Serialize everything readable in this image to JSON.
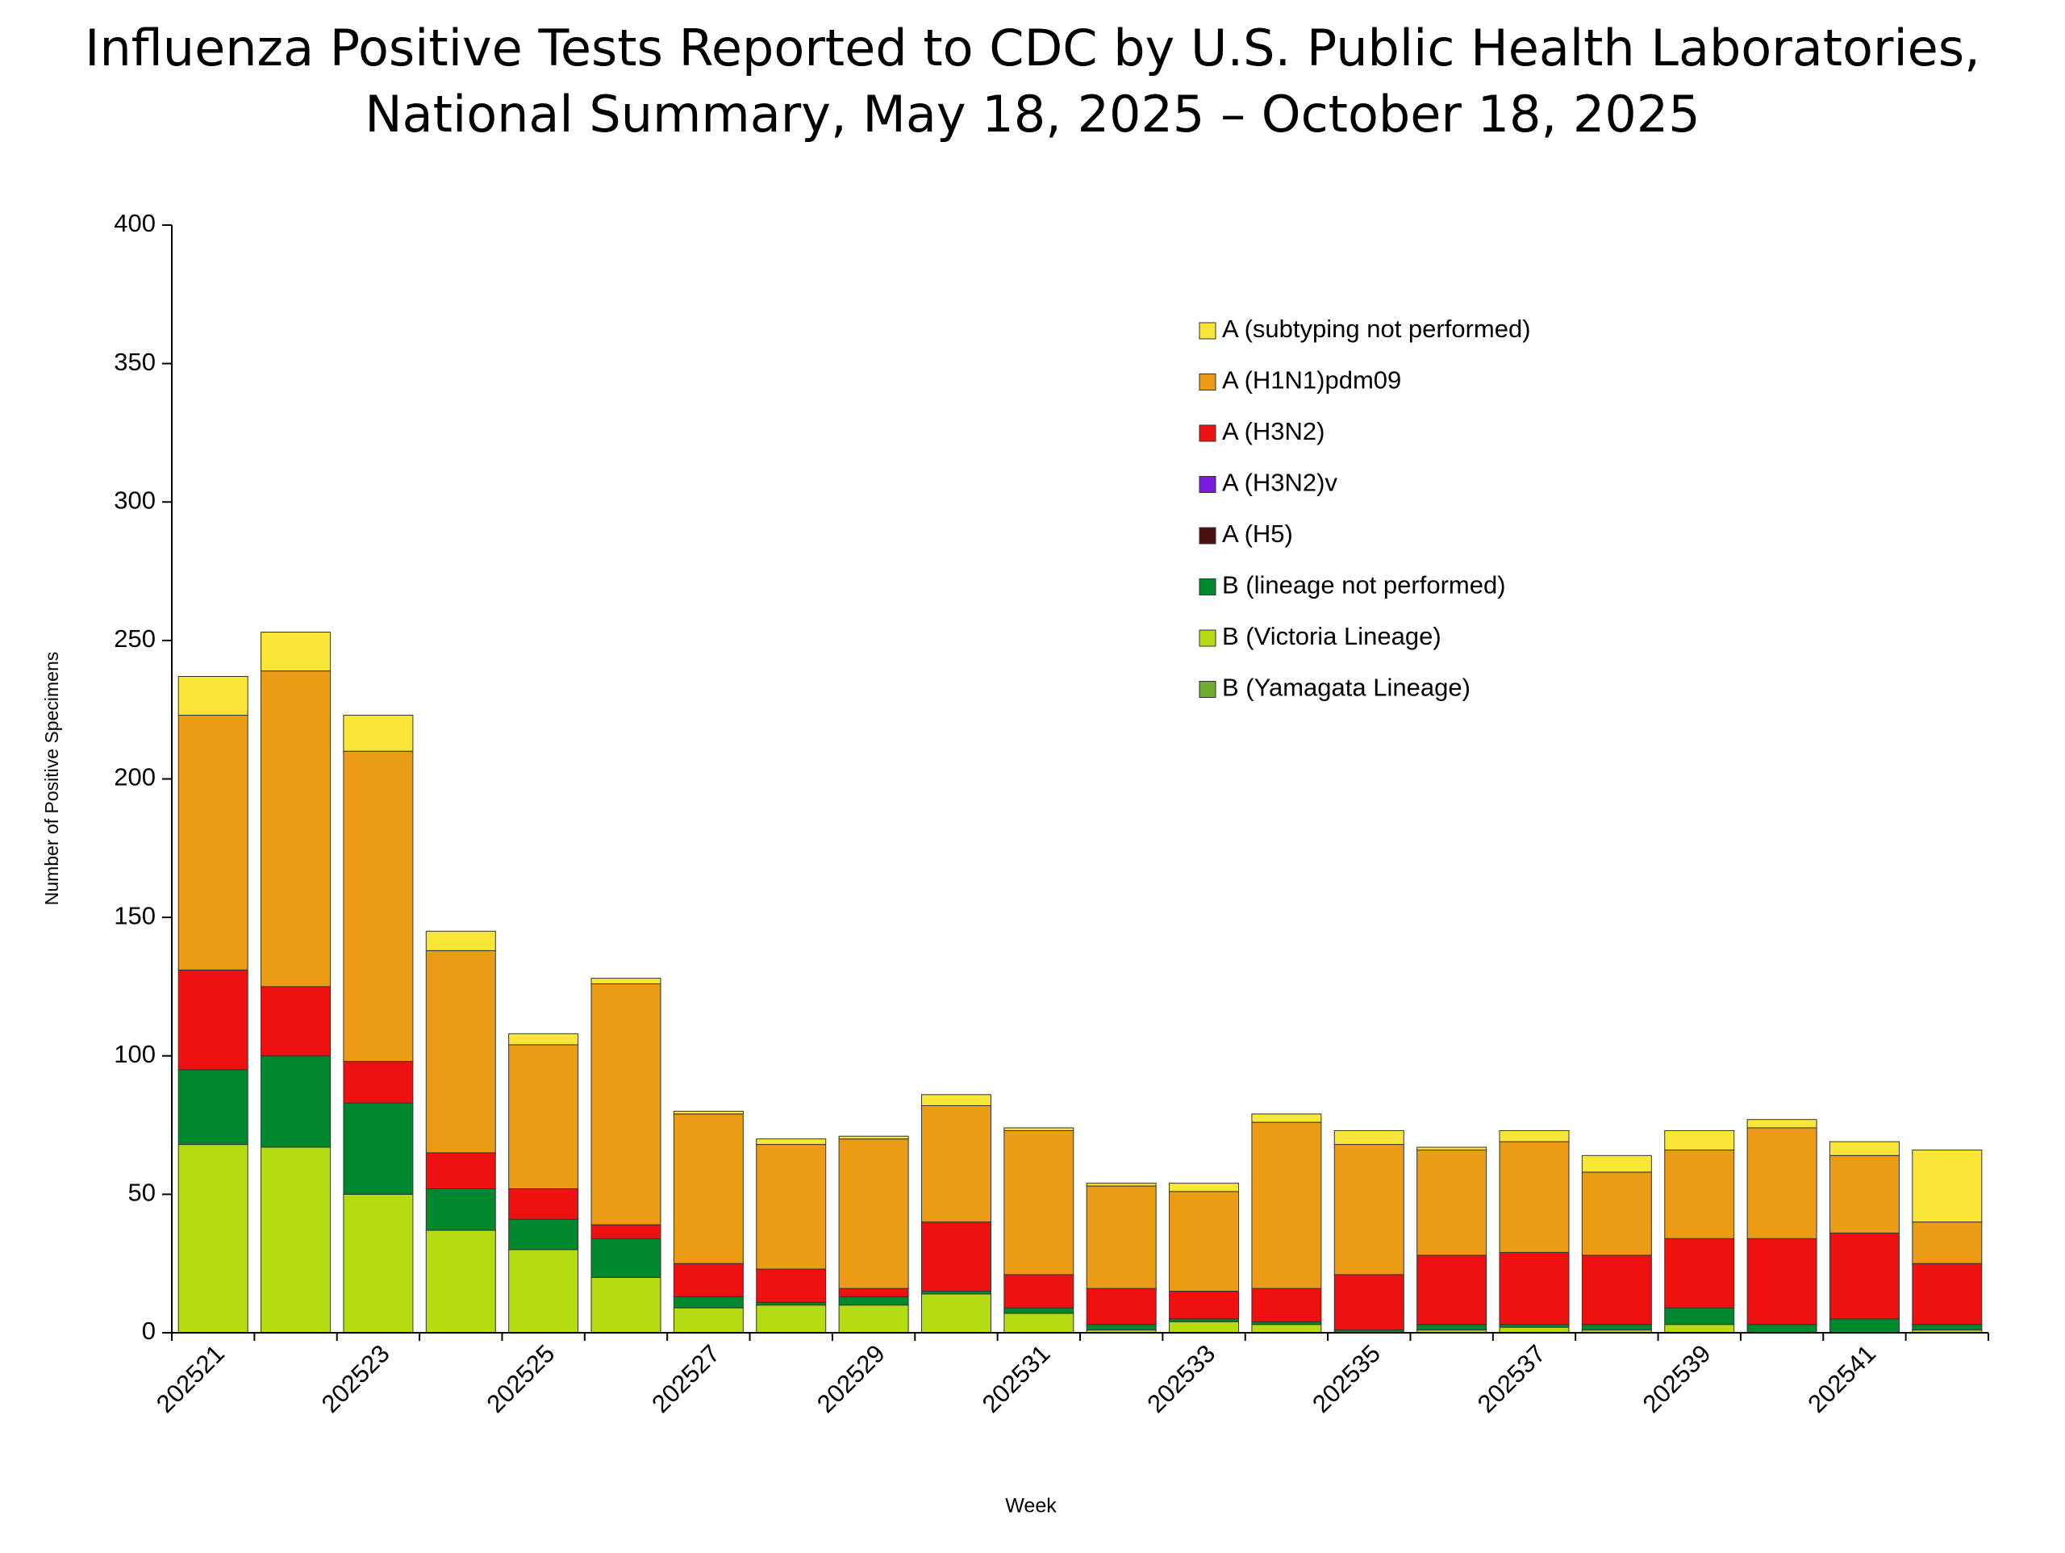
{
  "chart_data": {
    "type": "stacked_bar",
    "title": [
      "Influenza Positive Tests Reported to CDC by U.S. Public Health Laboratories,",
      "National Summary, May 18, 2025 – October 18, 2025"
    ],
    "x_label": "Week",
    "y_label": "Number of Positive Specimens",
    "categories": [
      "202521",
      null,
      "202523",
      null,
      "202525",
      null,
      "202527",
      null,
      "202529",
      null,
      "202531",
      null,
      "202533",
      null,
      "202535",
      null,
      "202537",
      null,
      "202539",
      null,
      "202541",
      null
    ],
    "ylim": [
      0,
      400
    ],
    "yticks": [
      0,
      50,
      100,
      150,
      200,
      250,
      300,
      350,
      400
    ],
    "grid": false,
    "series": [
      {
        "name": "B (Yamagata Lineage)",
        "color": "#6fae2e",
        "values": [
          0,
          0,
          0,
          0,
          0,
          0,
          0,
          0,
          0,
          0,
          0,
          0,
          0,
          0,
          0,
          0,
          0,
          0,
          0,
          0,
          0,
          0
        ]
      },
      {
        "name": "B (Victoria Lineage)",
        "color": "#b5dc10",
        "values": [
          68,
          67,
          50,
          37,
          30,
          20,
          9,
          10,
          10,
          14,
          7,
          1,
          4,
          3,
          0,
          1,
          2,
          1,
          3,
          0,
          0,
          1
        ]
      },
      {
        "name": "B (lineage not performed)",
        "color": "#00882f",
        "values": [
          27,
          33,
          33,
          15,
          11,
          14,
          4,
          1,
          3,
          1,
          2,
          2,
          1,
          1,
          1,
          2,
          1,
          2,
          6,
          3,
          5,
          2
        ]
      },
      {
        "name": "A (H5)",
        "color": "#4a1010",
        "values": [
          0,
          0,
          0,
          0,
          0,
          0,
          0,
          0,
          0,
          0,
          0,
          0,
          0,
          0,
          0,
          0,
          0,
          0,
          0,
          0,
          0,
          0
        ]
      },
      {
        "name": "A (H3N2)v",
        "color": "#7a1ce0",
        "values": [
          0,
          0,
          0,
          0,
          0,
          0,
          0,
          0,
          0,
          0,
          0,
          0,
          0,
          0,
          0,
          0,
          0,
          0,
          0,
          0,
          0,
          0
        ]
      },
      {
        "name": "A (H3N2)",
        "color": "#ef1010",
        "values": [
          36,
          25,
          15,
          13,
          11,
          5,
          12,
          12,
          3,
          25,
          12,
          13,
          10,
          12,
          20,
          25,
          26,
          25,
          25,
          31,
          31,
          22
        ]
      },
      {
        "name": "A (H1N1)pdm09",
        "color": "#eb9c14",
        "values": [
          92,
          114,
          112,
          73,
          52,
          87,
          54,
          45,
          54,
          42,
          52,
          37,
          36,
          60,
          47,
          38,
          40,
          30,
          32,
          40,
          28,
          15
        ]
      },
      {
        "name": "A (subtyping not performed)",
        "color": "#f9e636",
        "values": [
          14,
          14,
          13,
          7,
          4,
          2,
          1,
          2,
          1,
          4,
          1,
          1,
          3,
          3,
          5,
          1,
          4,
          6,
          7,
          3,
          5,
          26
        ]
      }
    ]
  }
}
